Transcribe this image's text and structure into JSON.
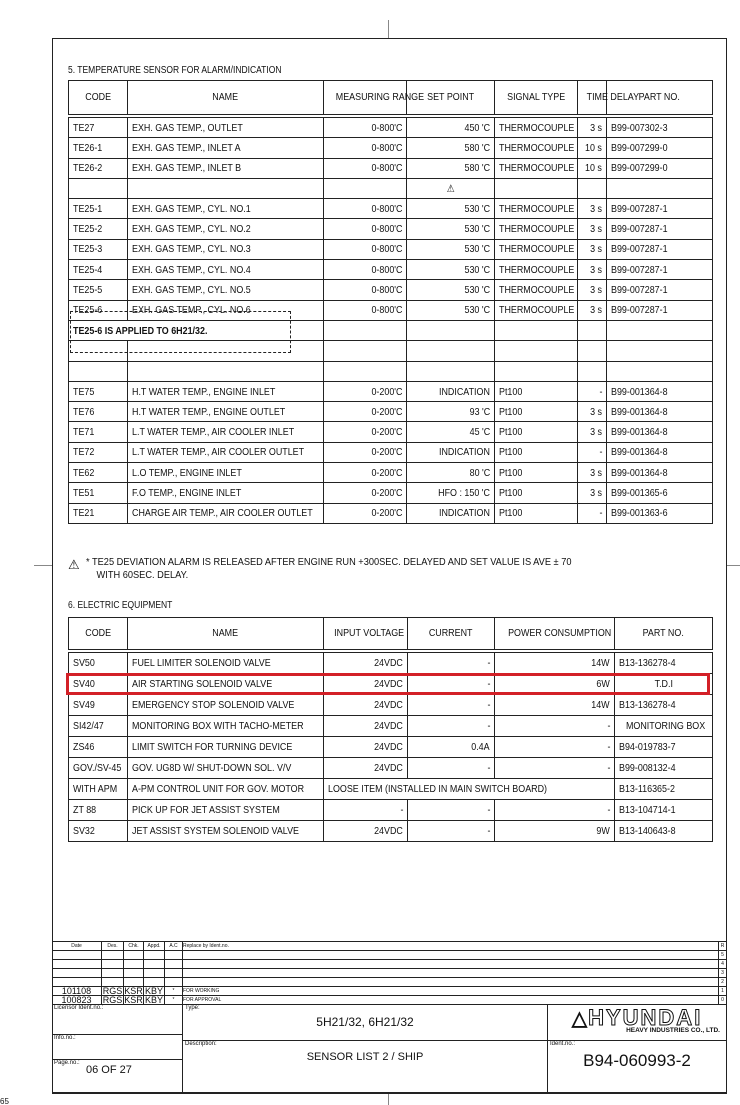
{
  "section5": {
    "title": "5. TEMPERATURE SENSOR FOR ALARM/INDICATION",
    "headers": [
      "CODE",
      "NAME",
      "MEASURING RANGE",
      "SET POINT",
      "SIGNAL TYPE",
      "TIME DELAY",
      "PART NO."
    ],
    "rows": [
      [
        "TE27",
        "EXH. GAS TEMP., OUTLET",
        "0-800'C",
        "450 'C",
        "THERMOCOUPLE",
        "3 s",
        "B99-007302-3"
      ],
      [
        "TE26-1",
        "EXH. GAS TEMP., INLET A",
        "0-800'C",
        "580 'C",
        "THERMOCOUPLE",
        "10 s",
        "B99-007299-0"
      ],
      [
        "TE26-2",
        "EXH. GAS TEMP., INLET B",
        "0-800'C",
        "580 'C",
        "THERMOCOUPLE",
        "10 s",
        "B99-007299-0"
      ],
      [
        "",
        "",
        "",
        "⚠",
        "",
        "",
        ""
      ],
      [
        "TE25-1",
        "EXH. GAS TEMP., CYL. NO.1",
        "0-800'C",
        "530 'C",
        "THERMOCOUPLE",
        "3 s",
        "B99-007287-1"
      ],
      [
        "TE25-2",
        "EXH. GAS TEMP., CYL. NO.2",
        "0-800'C",
        "530 'C",
        "THERMOCOUPLE",
        "3 s",
        "B99-007287-1"
      ],
      [
        "TE25-3",
        "EXH. GAS TEMP., CYL. NO.3",
        "0-800'C",
        "530 'C",
        "THERMOCOUPLE",
        "3 s",
        "B99-007287-1"
      ],
      [
        "TE25-4",
        "EXH. GAS TEMP., CYL. NO.4",
        "0-800'C",
        "530 'C",
        "THERMOCOUPLE",
        "3 s",
        "B99-007287-1"
      ],
      [
        "TE25-5",
        "EXH. GAS TEMP., CYL. NO.5",
        "0-800'C",
        "530 'C",
        "THERMOCOUPLE",
        "3 s",
        "B99-007287-1"
      ],
      [
        "TE25-6",
        "EXH. GAS TEMP., CYL. NO.6",
        "0-800'C",
        "530 'C",
        "THERMOCOUPLE",
        "3 s",
        "B99-007287-1"
      ],
      [
        "TE25-6 IS APPLIED TO 6H21/32.",
        "",
        "",
        "",
        "",
        "",
        ""
      ],
      [
        "",
        "",
        "",
        "",
        "",
        "",
        ""
      ],
      [
        "",
        "",
        "",
        "",
        "",
        "",
        ""
      ],
      [
        "TE75",
        "H.T WATER TEMP., ENGINE INLET",
        "0-200'C",
        "INDICATION",
        "Pt100",
        "-",
        "B99-001364-8"
      ],
      [
        "TE76",
        "H.T WATER TEMP., ENGINE OUTLET",
        "0-200'C",
        "93 'C",
        "Pt100",
        "3 s",
        "B99-001364-8"
      ],
      [
        "TE71",
        "L.T WATER TEMP., AIR COOLER INLET",
        "0-200'C",
        "45 'C",
        "Pt100",
        "3 s",
        "B99-001364-8"
      ],
      [
        "TE72",
        "L.T WATER TEMP., AIR COOLER OUTLET",
        "0-200'C",
        "INDICATION",
        "Pt100",
        "-",
        "B99-001364-8"
      ],
      [
        "TE62",
        "L.O TEMP., ENGINE INLET",
        "0-200'C",
        "80 'C",
        "Pt100",
        "3 s",
        "B99-001364-8"
      ],
      [
        "TE51",
        "F.O TEMP., ENGINE INLET",
        "0-200'C",
        "HFO : 150 'C",
        "Pt100",
        "3 s",
        "B99-001365-6"
      ],
      [
        "TE21",
        "CHARGE AIR TEMP., AIR COOLER OUTLET",
        "0-200'C",
        "INDICATION",
        "Pt100",
        "-",
        "B99-001363-6"
      ]
    ],
    "note_line1": "* TE25 DEVIATION ALARM IS RELEASED AFTER ENGINE RUN +300SEC. DELAYED AND SET VALUE IS AVE ± 70",
    "note_line2": "WITH 60SEC. DELAY.",
    "note_icon": "⚠"
  },
  "section6": {
    "title": "6. ELECTRIC EQUIPMENT",
    "headers": [
      "CODE",
      "NAME",
      "INPUT VOLTAGE",
      "CURRENT",
      "POWER CONSUMPTION",
      "PART NO."
    ],
    "rows": [
      [
        "SV50",
        "FUEL LIMITER SOLENOID VALVE",
        "24VDC",
        "-",
        "14W",
        "B13-136278-4"
      ],
      [
        "SV40",
        "AIR STARTING SOLENOID VALVE",
        "24VDC",
        "-",
        "6W",
        "T.D.I"
      ],
      [
        "SV49",
        "EMERGENCY STOP SOLENOID VALVE",
        "24VDC",
        "-",
        "14W",
        "B13-136278-4"
      ],
      [
        "SI42/47",
        "MONITORING BOX WITH TACHO-METER",
        "24VDC",
        "-",
        "-",
        "MONITORING BOX"
      ],
      [
        "ZS46",
        "LIMIT SWITCH FOR TURNING DEVICE",
        "24VDC",
        "0.4A",
        "-",
        "B94-019783-7"
      ],
      [
        "GOV./SV-45",
        "GOV. UG8D W/ SHUT-DOWN SOL. V/V",
        "24VDC",
        "-",
        "-",
        "B99-008132-4"
      ],
      [
        "WITH APM",
        "A-PM CONTROL UNIT FOR GOV. MOTOR",
        "LOOSE ITEM (INSTALLED IN MAIN SWITCH BOARD)",
        "",
        "",
        "B13-116365-2"
      ],
      [
        "ZT 88",
        "PICK UP FOR JET ASSIST SYSTEM",
        "-",
        "-",
        "-",
        "B13-104714-1"
      ],
      [
        "SV32",
        "JET ASSIST SYSTEM SOLENOID VALVE",
        "24VDC",
        "-",
        "9W",
        "B13-140643-8"
      ]
    ],
    "highlight_color": "#d32027"
  },
  "title_block": {
    "rev_headers": [
      "Date",
      "Des.",
      "Chk.",
      "Appd.",
      "A.C",
      "Replace by Ident.no.",
      "R"
    ],
    "rev_numbers": [
      "5",
      "4",
      "3",
      "2"
    ],
    "revisions": [
      {
        "date": "101108",
        "des": "RGS",
        "chk": "KSR",
        "appd": "KBY",
        "ac": "*",
        "text": "FOR WORKING",
        "rev": "1"
      },
      {
        "date": "100823",
        "des": "RGS",
        "chk": "KSR",
        "appd": "KBY",
        "ac": "*",
        "text": "FOR APPROVAL",
        "rev": "0"
      }
    ],
    "licensor_label": "Licensor Ident.no.:",
    "infono_label": "Info.no.:",
    "page_label": "Page.no.:",
    "page_value": "06 OF 27",
    "type_label": "Type:",
    "type_value": "5H21/32, 6H21/32",
    "description_label": "Description:",
    "description_value": "SENSOR LIST 2 / SHIP",
    "ident_label": "Ident.no.:",
    "ident_value": "B94-060993-2",
    "logo_text": "HYUNDAI",
    "logo_sub": "HEAVY INDUSTRIES CO., LTD."
  },
  "margin_mark": "65"
}
